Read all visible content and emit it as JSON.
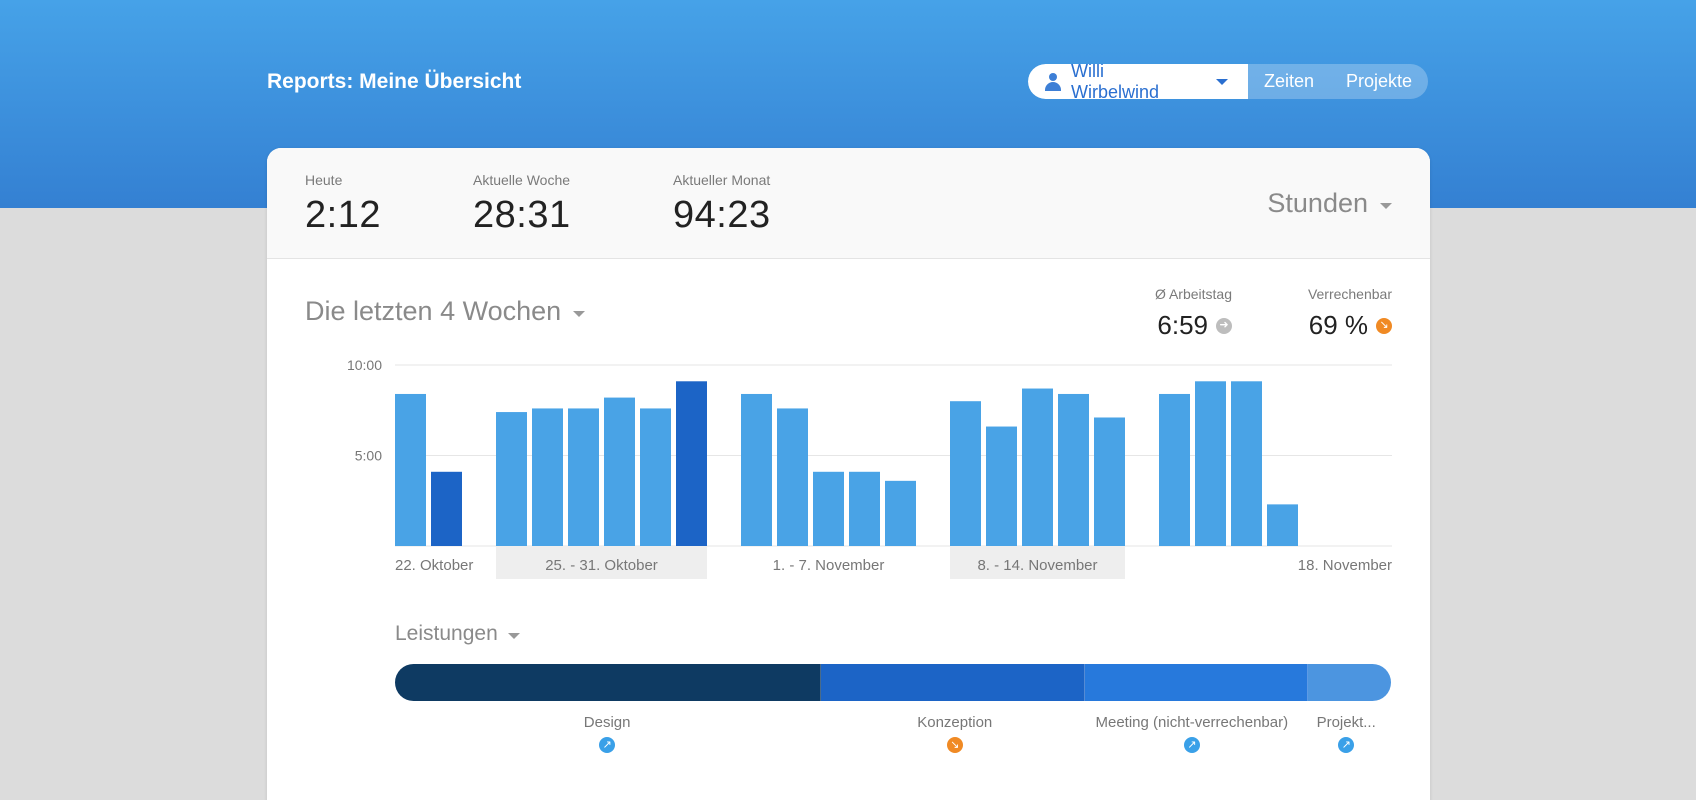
{
  "header": {
    "title": "Reports: Meine Übersicht",
    "user_name": "Willi Wirbelwind",
    "nav": [
      "Zeiten",
      "Projekte"
    ]
  },
  "stats": [
    {
      "label": "Heute",
      "value": "2:12"
    },
    {
      "label": "Aktuelle Woche",
      "value": "28:31"
    },
    {
      "label": "Aktueller Monat",
      "value": "94:23"
    }
  ],
  "unit_select": "Stunden",
  "period_select": "Die letzten 4 Wochen",
  "kpis": [
    {
      "label": "Ø Arbeitstag",
      "value": "6:59",
      "indicator": "arrow-right-icon",
      "color": "#bdbdbd"
    },
    {
      "label": "Verrechenbar",
      "value": "69 %",
      "indicator": "arrow-down-right-icon",
      "color": "#f08a24"
    }
  ],
  "chart_data": {
    "type": "bar",
    "y_ticks": [
      "10:00",
      "5:00"
    ],
    "ylim": [
      0,
      10
    ],
    "groups": [
      {
        "label": "22. Oktober",
        "shaded": false,
        "values": [
          8.4,
          4.1
        ]
      },
      {
        "label": "25. - 31. Oktober",
        "shaded": true,
        "values": [
          7.4,
          7.6,
          7.6,
          8.2,
          7.6,
          9.1
        ]
      },
      {
        "label": "1. - 7. November",
        "shaded": false,
        "values": [
          8.4,
          7.6,
          4.1,
          4.1,
          3.6
        ]
      },
      {
        "label": "8. - 14. November",
        "shaded": true,
        "values": [
          8.0,
          6.6,
          8.7,
          8.4,
          7.1
        ]
      },
      {
        "label": "18. November",
        "shaded": false,
        "values": [
          8.4,
          9.1,
          9.1,
          2.3
        ]
      }
    ],
    "highlighted": [
      [
        0,
        1
      ],
      [
        1,
        5
      ]
    ],
    "colors": {
      "bar": "#49a3e6",
      "highlight": "#1c64c6"
    }
  },
  "services": {
    "title": "Leistungen",
    "items": [
      {
        "name": "Design",
        "share": 0.428,
        "color": "#0e3a62",
        "indicator": "arrow-up-right-icon",
        "indicator_color": "#3aa0e8"
      },
      {
        "name": "Konzeption",
        "share": 0.265,
        "color": "#1c64c6",
        "indicator": "arrow-down-right-icon",
        "indicator_color": "#f08a24"
      },
      {
        "name": "Meeting (nicht-verrechenbar)",
        "share": 0.224,
        "color": "#2779dc",
        "indicator": "arrow-up-right-icon",
        "indicator_color": "#3aa0e8"
      },
      {
        "name": "Projekt...",
        "share": 0.083,
        "color": "#4c95e0",
        "indicator": "arrow-up-right-icon",
        "indicator_color": "#3aa0e8"
      }
    ]
  }
}
